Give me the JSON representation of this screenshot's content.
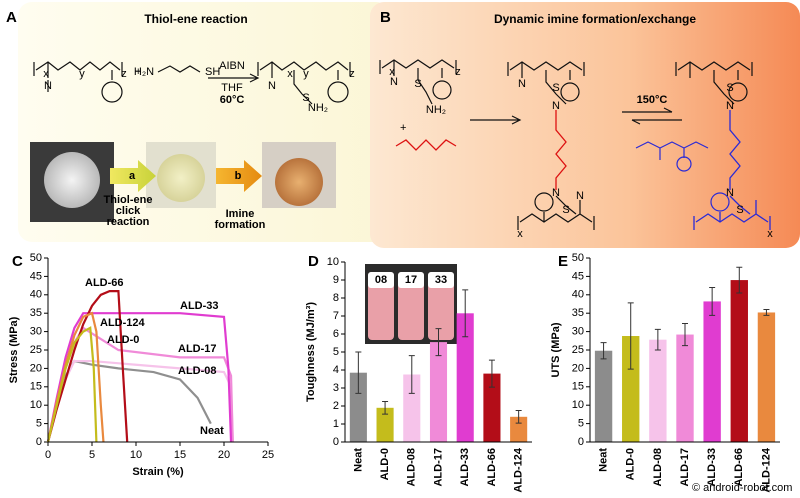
{
  "panel_a": {
    "label": "A",
    "title": "Thiol-ene reaction",
    "plus": "+",
    "reagent_left": "H₂N",
    "reagent_right": "SH",
    "conditions": [
      "AIBN",
      "THF",
      "60°C"
    ],
    "step_a": "a",
    "step_b": "b",
    "caption_a": [
      "Thiol-ene",
      "click",
      "reaction"
    ],
    "caption_b": [
      "Imine",
      "formation"
    ]
  },
  "panel_b": {
    "label": "B",
    "title": "Dynamic imine formation/exchange",
    "plus": "+",
    "condition": "150°C"
  },
  "atoms": [
    "N",
    "x",
    "y",
    "z",
    "N",
    "S",
    "NH₂",
    "x",
    "y",
    "z",
    "N",
    "S",
    "NH₂",
    "x",
    "z",
    "N",
    "S",
    "N",
    "N",
    "S",
    "x",
    "N",
    "S",
    "N",
    "N",
    "S",
    "x"
  ],
  "watermark": "© android-robot.com",
  "chart_data": [
    {
      "type": "line",
      "label": "C",
      "ylabel": "Stress (MPa)",
      "xlabel": "Strain (%)",
      "xlim": [
        0,
        25
      ],
      "xticks": [
        0,
        5,
        10,
        15,
        20,
        25
      ],
      "ylim": [
        0,
        50
      ],
      "yticks": [
        0,
        5,
        10,
        15,
        20,
        25,
        30,
        35,
        40,
        45,
        50
      ],
      "series": [
        {
          "name": "Neat",
          "color": "#8f8f8f",
          "x": [
            0,
            1,
            2,
            3,
            5,
            8,
            12,
            15,
            17,
            18.5
          ],
          "values": [
            0,
            10,
            18,
            22,
            21,
            20,
            19,
            17,
            12,
            5
          ]
        },
        {
          "name": "ALD-08",
          "color": "#f6c3ea",
          "x": [
            0,
            1,
            2,
            3,
            5,
            10,
            15,
            20,
            20.8,
            21
          ],
          "values": [
            0,
            9,
            17,
            22,
            22,
            21,
            20,
            19,
            15,
            0
          ]
        },
        {
          "name": "ALD-17",
          "color": "#f08ad8",
          "x": [
            0,
            1,
            2,
            3,
            4,
            8,
            15,
            20,
            20.8,
            21
          ],
          "values": [
            0,
            10,
            20,
            27,
            31,
            25,
            23,
            23,
            18,
            0
          ]
        },
        {
          "name": "ALD-33",
          "color": "#e03cd0",
          "x": [
            0,
            1,
            2,
            3,
            4,
            8,
            15,
            20,
            20.5,
            20.8
          ],
          "values": [
            0,
            12,
            23,
            31,
            35,
            35,
            35,
            34,
            20,
            0
          ]
        },
        {
          "name": "ALD-66",
          "color": "#b30d18",
          "x": [
            0,
            1,
            2,
            3,
            4,
            5,
            6,
            7,
            8,
            8.5,
            9
          ],
          "values": [
            0,
            9,
            17,
            25,
            32,
            37,
            40,
            41,
            41,
            20,
            0
          ]
        },
        {
          "name": "ALD-124",
          "color": "#e9893e",
          "x": [
            0,
            1,
            2,
            3,
            4,
            5,
            5.5,
            6,
            6.3
          ],
          "values": [
            0,
            11,
            21,
            29,
            34,
            35,
            30,
            10,
            0
          ]
        },
        {
          "name": "ALD-0",
          "color": "#c4bc1c",
          "x": [
            0,
            1,
            2,
            3,
            4,
            4.8,
            5.2,
            5.5
          ],
          "values": [
            0,
            10,
            20,
            27,
            30,
            31,
            20,
            0
          ]
        }
      ]
    },
    {
      "type": "bar",
      "label": "D",
      "ylabel": "Toughness (MJ/m³)",
      "inset_labels": [
        "08",
        "17",
        "33"
      ],
      "categories": [
        "Neat",
        "ALD-0",
        "ALD-08",
        "ALD-17",
        "ALD-33",
        "ALD-66",
        "ALD-124"
      ],
      "values": [
        3.85,
        1.9,
        3.75,
        5.55,
        7.15,
        3.8,
        1.4
      ],
      "errors": [
        1.15,
        0.35,
        1.05,
        0.75,
        1.3,
        0.75,
        0.35
      ],
      "colors": [
        "#8c8c8c",
        "#c4bc1c",
        "#f6c3ea",
        "#f08ad8",
        "#e03cd0",
        "#b30d18",
        "#e9893e"
      ],
      "ylim": [
        0,
        10
      ],
      "yticks": [
        0,
        1,
        2,
        3,
        4,
        5,
        6,
        7,
        8,
        9,
        10
      ]
    },
    {
      "type": "bar",
      "label": "E",
      "ylabel": "UTS (MPa)",
      "categories": [
        "Neat",
        "ALD-0",
        "ALD-08",
        "ALD-17",
        "ALD-33",
        "ALD-66",
        "ALD-124"
      ],
      "values": [
        24.8,
        28.8,
        27.8,
        29.2,
        38.2,
        44.0,
        35.2
      ],
      "errors": [
        2.2,
        9,
        2.8,
        3,
        3.8,
        3.5,
        0.8
      ],
      "colors": [
        "#8c8c8c",
        "#c4bc1c",
        "#f6c3ea",
        "#f08ad8",
        "#e03cd0",
        "#b30d18",
        "#e9893e"
      ],
      "ylim": [
        0,
        50
      ],
      "yticks": [
        0,
        5,
        10,
        15,
        20,
        25,
        30,
        35,
        40,
        45,
        50
      ]
    }
  ]
}
